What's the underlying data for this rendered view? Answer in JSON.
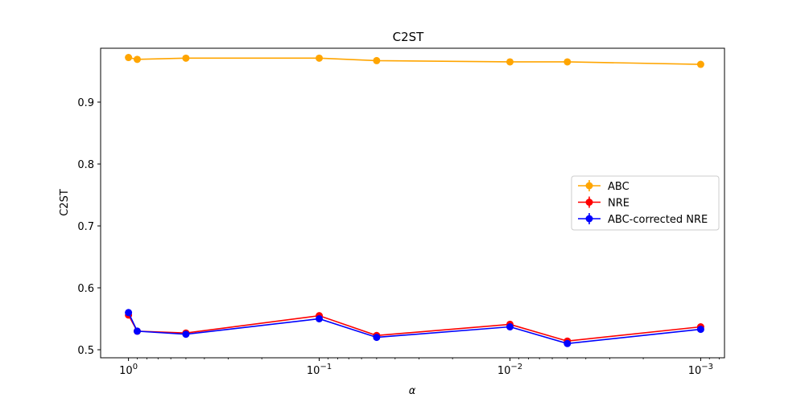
{
  "chart_data": {
    "type": "line",
    "title": "C2ST",
    "xlabel": "α",
    "ylabel": "C2ST",
    "x_scale": "log",
    "x_reversed": true,
    "xlim": [
      1.4,
      0.00075
    ],
    "ylim": [
      0.487,
      0.987
    ],
    "x_ticks": [
      {
        "value": 1,
        "base": "10",
        "exp": "0"
      },
      {
        "value": 0.1,
        "base": "10",
        "exp": "−1"
      },
      {
        "value": 0.01,
        "base": "10",
        "exp": "−2"
      },
      {
        "value": 0.001,
        "base": "10",
        "exp": "−3"
      }
    ],
    "y_ticks": [
      {
        "value": 0.5,
        "label": "0.5"
      },
      {
        "value": 0.6,
        "label": "0.6"
      },
      {
        "value": 0.7,
        "label": "0.7"
      },
      {
        "value": 0.8,
        "label": "0.8"
      },
      {
        "value": 0.9,
        "label": "0.9"
      }
    ],
    "x": [
      1.0,
      0.9,
      0.5,
      0.1,
      0.05,
      0.01,
      0.005,
      0.001
    ],
    "series": [
      {
        "name": "ABC",
        "color": "#ffa500",
        "values": [
          0.972,
          0.969,
          0.971,
          0.971,
          0.967,
          0.965,
          0.965,
          0.961
        ]
      },
      {
        "name": "NRE",
        "color": "#ff0000",
        "values": [
          0.556,
          0.53,
          0.527,
          0.555,
          0.523,
          0.541,
          0.514,
          0.537
        ]
      },
      {
        "name": "ABC-corrected NRE",
        "color": "#0000ff",
        "values": [
          0.56,
          0.53,
          0.525,
          0.55,
          0.52,
          0.537,
          0.51,
          0.533
        ]
      }
    ],
    "legend_position": "center-right",
    "grid": false
  }
}
